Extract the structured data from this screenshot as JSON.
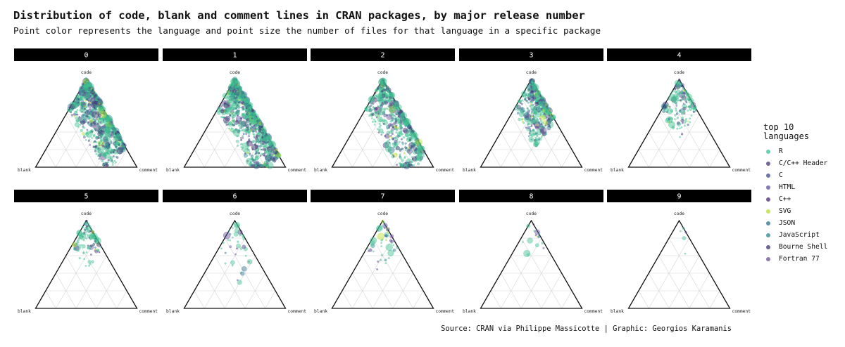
{
  "title": "Distribution of code, blank and comment lines in CRAN packages, by major release number",
  "subtitle": "Point color represents the language and point size the number of files for that language in a specific package",
  "caption": "Source: CRAN via Philippe Massicotte | Graphic: Georgios Karamanis",
  "chart_data": {
    "type": "scatter",
    "chart_kind": "ternary",
    "facet_by": "major release number",
    "axes": [
      "code",
      "blank",
      "comment"
    ],
    "grid": true,
    "legend_position": "right",
    "legend": {
      "title": "top 10\nlanguages",
      "entries": [
        {
          "name": "R",
          "color": "#3bbf8f"
        },
        {
          "name": "C/C++ Header",
          "color": "#47337e"
        },
        {
          "name": "C",
          "color": "#3d4a8a"
        },
        {
          "name": "HTML",
          "color": "#5e4fa2"
        },
        {
          "name": "C++",
          "color": "#46286f"
        },
        {
          "name": "SVG",
          "color": "#b5de2b"
        },
        {
          "name": "JSON",
          "color": "#2f6f8e"
        },
        {
          "name": "JavaScript",
          "color": "#24868e"
        },
        {
          "name": "Bourne Shell",
          "color": "#3b2f70"
        },
        {
          "name": "Fortran 77",
          "color": "#6a4c93"
        }
      ]
    },
    "facets": [
      {
        "label": "0",
        "density": 900,
        "spread": 0.55,
        "pattern": "wide"
      },
      {
        "label": "1",
        "density": 900,
        "spread": 0.62,
        "pattern": "wide"
      },
      {
        "label": "2",
        "density": 600,
        "spread": 0.6,
        "pattern": "wide"
      },
      {
        "label": "3",
        "density": 420,
        "spread": 0.45,
        "pattern": "mid"
      },
      {
        "label": "4",
        "density": 180,
        "spread": 0.35,
        "pattern": "mid"
      },
      {
        "label": "5",
        "density": 110,
        "spread": 0.35,
        "pattern": "narrow"
      },
      {
        "label": "6",
        "density": 40,
        "spread": 0.4,
        "pattern": "sparse"
      },
      {
        "label": "7",
        "density": 45,
        "spread": 0.3,
        "pattern": "sparse"
      },
      {
        "label": "8",
        "density": 16,
        "spread": 0.3,
        "pattern": "sparse"
      },
      {
        "label": "9",
        "density": 5,
        "spread": 0.3,
        "pattern": "sparse"
      }
    ]
  }
}
